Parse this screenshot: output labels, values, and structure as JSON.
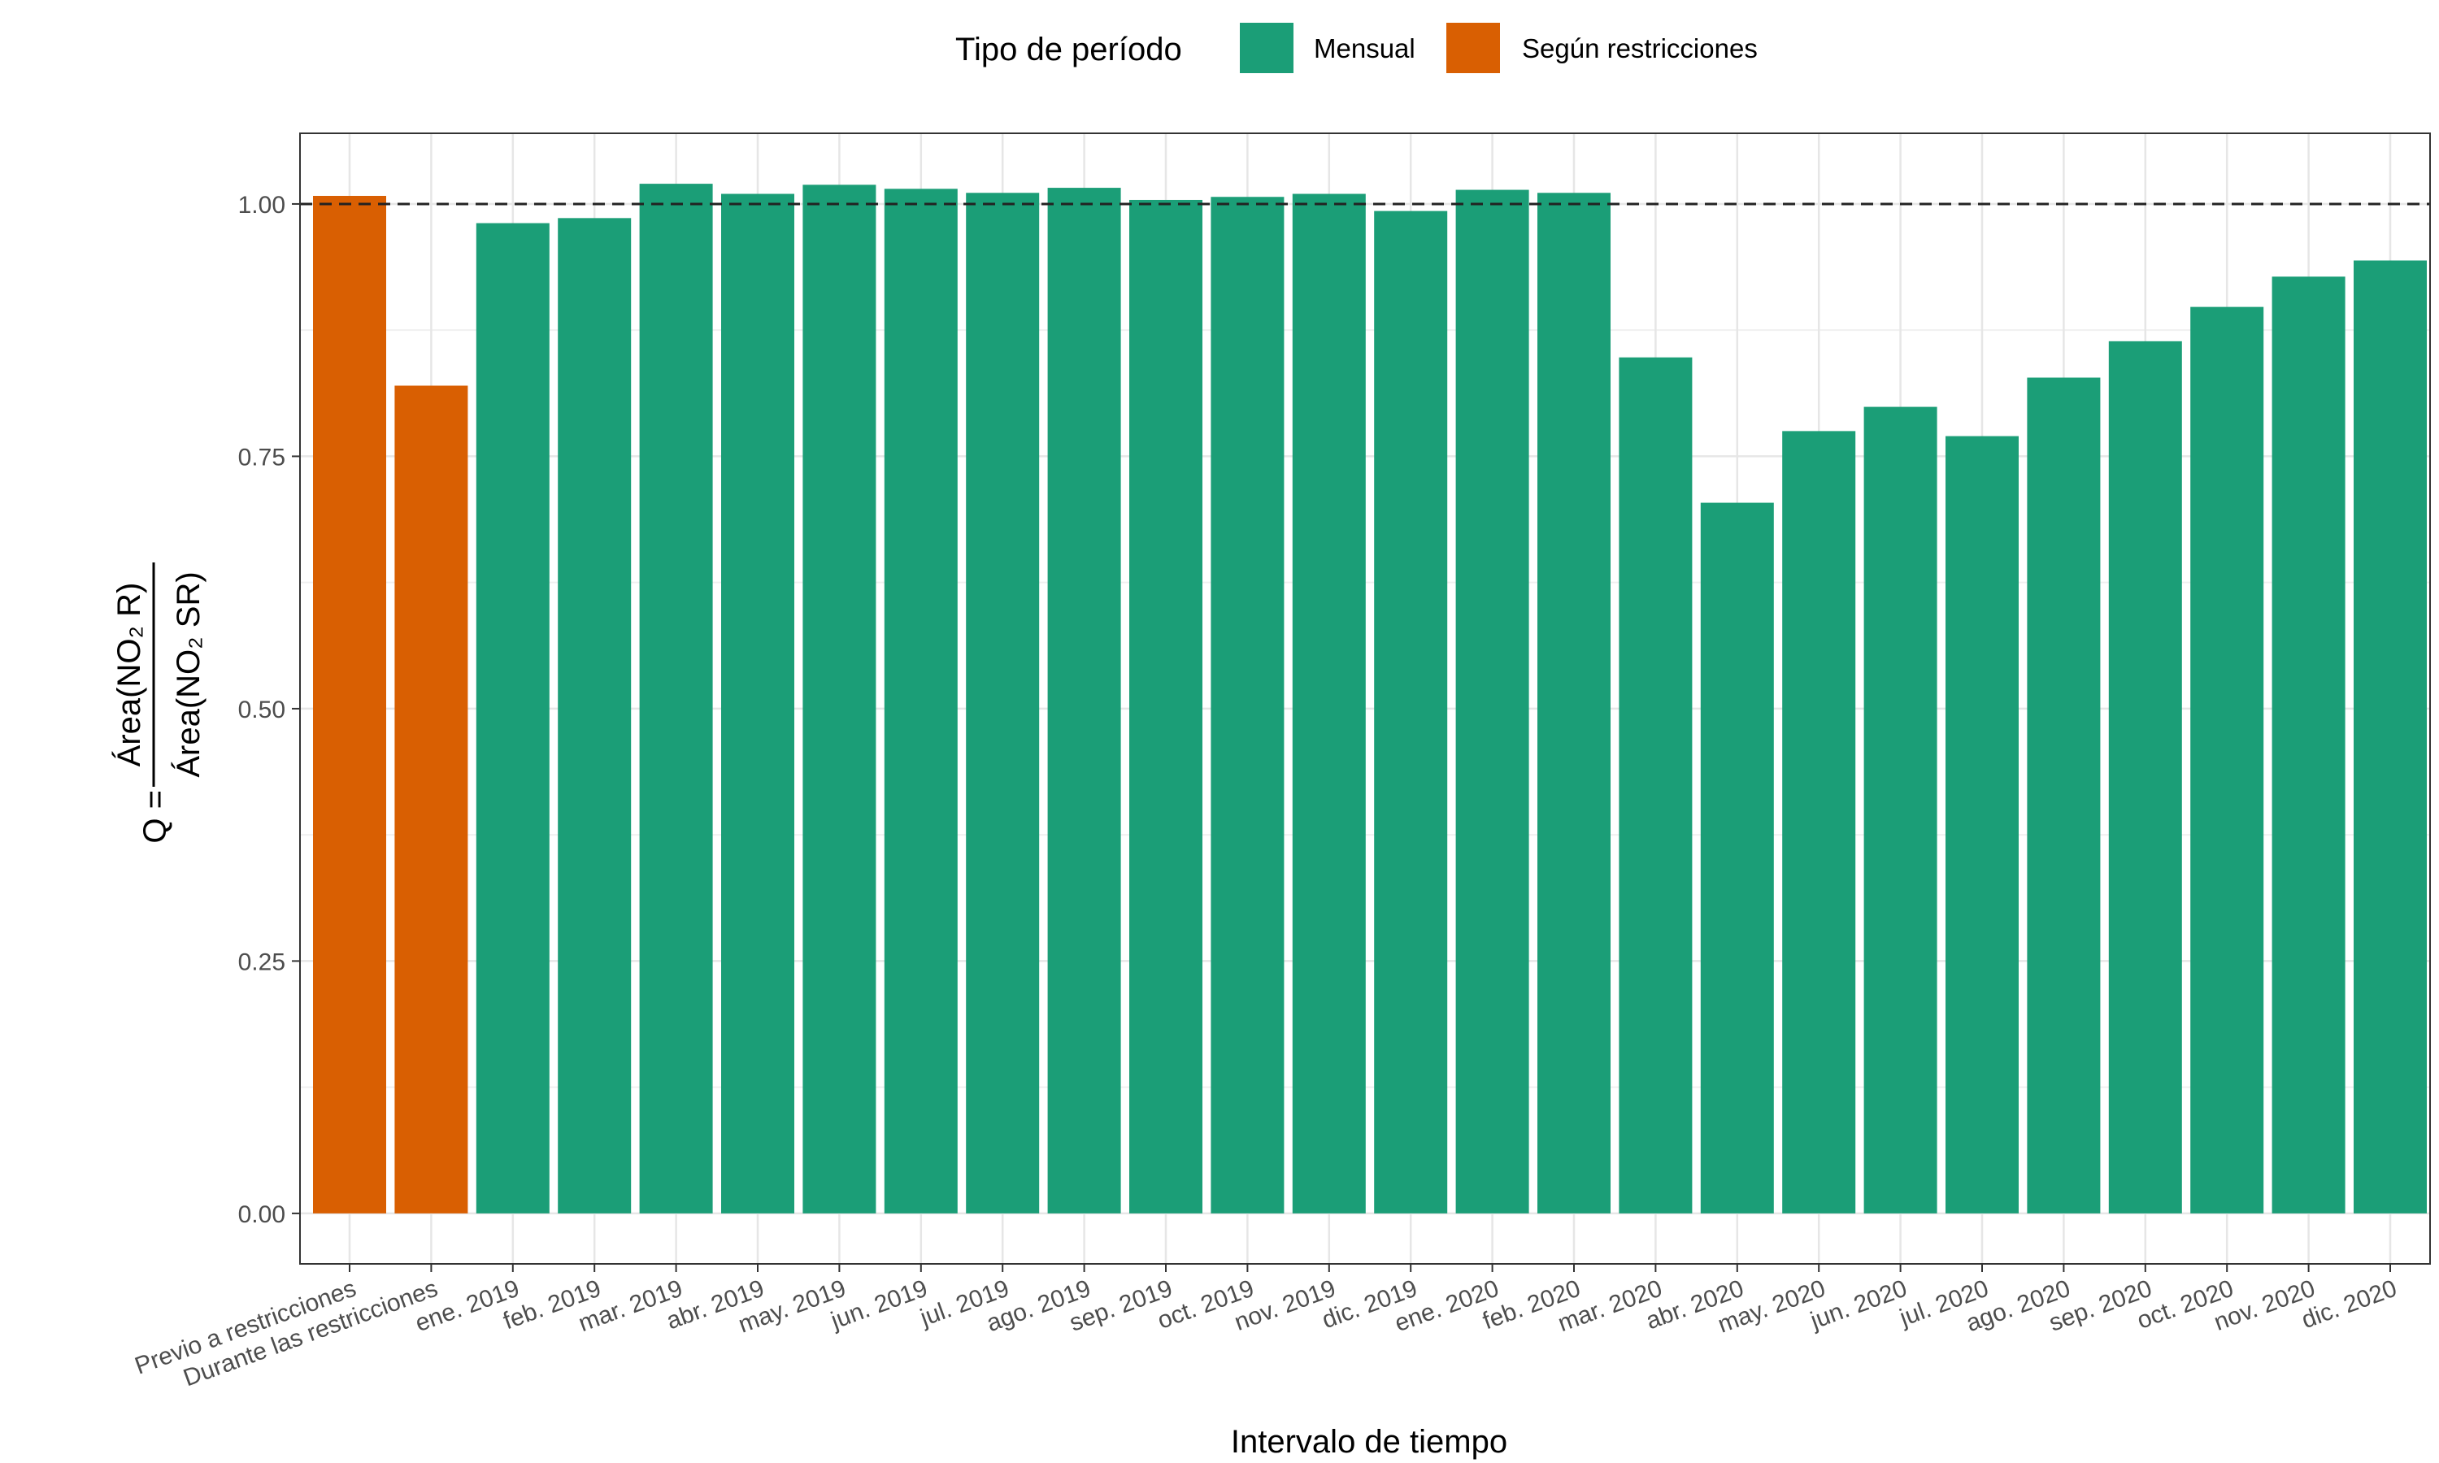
{
  "chart_data": {
    "type": "bar",
    "xlabel": "Intervalo de tiempo",
    "ylabel": {
      "prefix": "Q =",
      "numerator": "Área(NO₂ R)",
      "denominator": "Área(NO₂ SR)"
    },
    "ylim": [
      -0.05,
      1.07
    ],
    "yticks": [
      "0.00",
      "0.25",
      "0.50",
      "0.75",
      "1.00"
    ],
    "reference_line": 1.0,
    "grid": true,
    "legend": {
      "title": "Tipo de período",
      "position": "top",
      "entries": [
        {
          "name": "Mensual",
          "color": "#1b9e77"
        },
        {
          "name": "Según restricciones",
          "color": "#d95f02"
        }
      ]
    },
    "categories": [
      "Previo a restricciones",
      "Durante las restricciones",
      "ene. 2019",
      "feb. 2019",
      "mar. 2019",
      "abr. 2019",
      "may. 2019",
      "jun. 2019",
      "jul. 2019",
      "ago. 2019",
      "sep. 2019",
      "oct. 2019",
      "nov. 2019",
      "dic. 2019",
      "ene. 2020",
      "feb. 2020",
      "mar. 2020",
      "abr. 2020",
      "may. 2020",
      "jun. 2020",
      "jul. 2020",
      "ago. 2020",
      "sep. 2020",
      "oct. 2020",
      "nov. 2020",
      "dic. 2020"
    ],
    "values": [
      1.008,
      0.82,
      0.981,
      0.986,
      1.02,
      1.01,
      1.019,
      1.015,
      1.011,
      1.016,
      1.004,
      1.007,
      1.01,
      0.993,
      1.014,
      1.011,
      0.848,
      0.704,
      0.775,
      0.799,
      0.77,
      0.828,
      0.864,
      0.898,
      0.928,
      0.944
    ],
    "groups": [
      "Según restricciones",
      "Según restricciones",
      "Mensual",
      "Mensual",
      "Mensual",
      "Mensual",
      "Mensual",
      "Mensual",
      "Mensual",
      "Mensual",
      "Mensual",
      "Mensual",
      "Mensual",
      "Mensual",
      "Mensual",
      "Mensual",
      "Mensual",
      "Mensual",
      "Mensual",
      "Mensual",
      "Mensual",
      "Mensual",
      "Mensual",
      "Mensual",
      "Mensual",
      "Mensual"
    ]
  }
}
